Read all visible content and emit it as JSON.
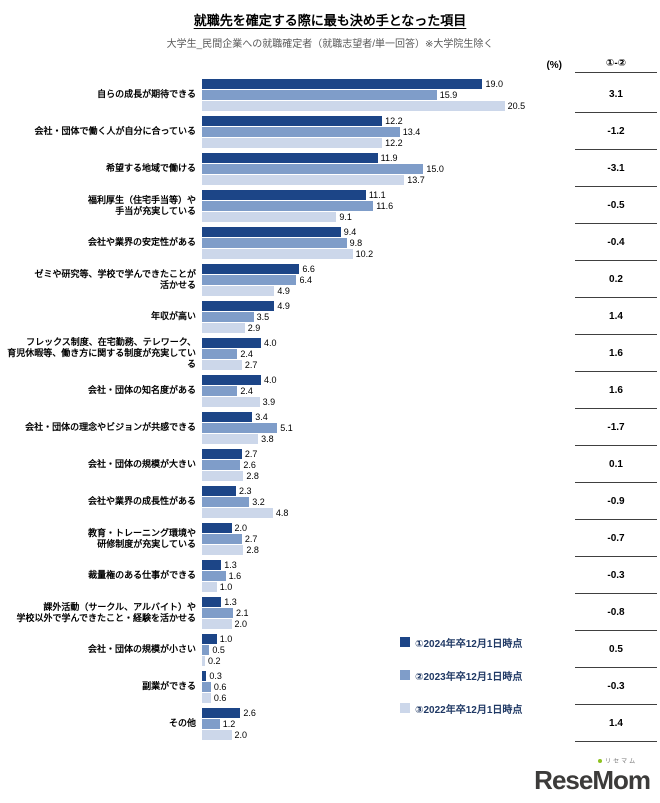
{
  "header": {
    "title": "就職先を確定する際に最も決め手となった項目",
    "subtitle": "大学生_民間企業への就職確定者（就職志望者/単一回答）※大学院生除く"
  },
  "chart_data": {
    "type": "bar",
    "orientation": "horizontal",
    "unit_label": "(%)",
    "diff_label": "①-②",
    "xlim": [
      0,
      21
    ],
    "grid": false,
    "legend_position": "bottom-right-inside",
    "series": [
      {
        "name": "①2024年卒12月1日時点",
        "color": "#1c4587"
      },
      {
        "name": "②2023年卒12月1日時点",
        "color": "#7f9dc9"
      },
      {
        "name": "③2022年卒12月1日時点",
        "color": "#ccd7ea"
      }
    ],
    "rows": [
      {
        "label_lines": [
          "自らの成長が期待できる"
        ],
        "values": [
          19.0,
          15.9,
          20.5
        ],
        "diff": 3.1
      },
      {
        "label_lines": [
          "会社・団体で働く人が自分に合っている"
        ],
        "values": [
          12.2,
          13.4,
          12.2
        ],
        "diff": -1.2
      },
      {
        "label_lines": [
          "希望する地域で働ける"
        ],
        "values": [
          11.9,
          15.0,
          13.7
        ],
        "diff": -3.1
      },
      {
        "label_lines": [
          "福利厚生（住宅手当等）や",
          "手当が充実している"
        ],
        "values": [
          11.1,
          11.6,
          9.1
        ],
        "diff": -0.5
      },
      {
        "label_lines": [
          "会社や業界の安定性がある"
        ],
        "values": [
          9.4,
          9.8,
          10.2
        ],
        "diff": -0.4
      },
      {
        "label_lines": [
          "ゼミや研究等、学校で学んできたことが",
          "活かせる"
        ],
        "values": [
          6.6,
          6.4,
          4.9
        ],
        "diff": 0.2
      },
      {
        "label_lines": [
          "年収が高い"
        ],
        "values": [
          4.9,
          3.5,
          2.9
        ],
        "diff": 1.4
      },
      {
        "label_lines": [
          "フレックス制度、在宅勤務、テレワーク、",
          "育児休暇等、働き方に関する制度が充実している"
        ],
        "values": [
          4.0,
          2.4,
          2.7
        ],
        "diff": 1.6
      },
      {
        "label_lines": [
          "会社・団体の知名度がある"
        ],
        "values": [
          4.0,
          2.4,
          3.9
        ],
        "diff": 1.6
      },
      {
        "label_lines": [
          "会社・団体の理念やビジョンが共感できる"
        ],
        "values": [
          3.4,
          5.1,
          3.8
        ],
        "diff": -1.7
      },
      {
        "label_lines": [
          "会社・団体の規模が大きい"
        ],
        "values": [
          2.7,
          2.6,
          2.8
        ],
        "diff": 0.1
      },
      {
        "label_lines": [
          "会社や業界の成長性がある"
        ],
        "values": [
          2.3,
          3.2,
          4.8
        ],
        "diff": -0.9
      },
      {
        "label_lines": [
          "教育・トレーニング環境や",
          "研修制度が充実している"
        ],
        "values": [
          2.0,
          2.7,
          2.8
        ],
        "diff": -0.7
      },
      {
        "label_lines": [
          "裁量権のある仕事ができる"
        ],
        "values": [
          1.3,
          1.6,
          1.0
        ],
        "diff": -0.3
      },
      {
        "label_lines": [
          "課外活動（サークル、アルバイト）や",
          "学校以外で学んできたこと・経験を活かせる"
        ],
        "values": [
          1.3,
          2.1,
          2.0
        ],
        "diff": -0.8
      },
      {
        "label_lines": [
          "会社・団体の規模が小さい"
        ],
        "values": [
          1.0,
          0.5,
          0.2
        ],
        "diff": 0.5
      },
      {
        "label_lines": [
          "副業ができる"
        ],
        "values": [
          0.3,
          0.6,
          0.6
        ],
        "diff": -0.3
      },
      {
        "label_lines": [
          "その他"
        ],
        "values": [
          2.6,
          1.2,
          2.0
        ],
        "diff": 1.4
      }
    ]
  },
  "footer": {
    "logo_text": "ReseMom",
    "logo_kana": "リセマム"
  }
}
